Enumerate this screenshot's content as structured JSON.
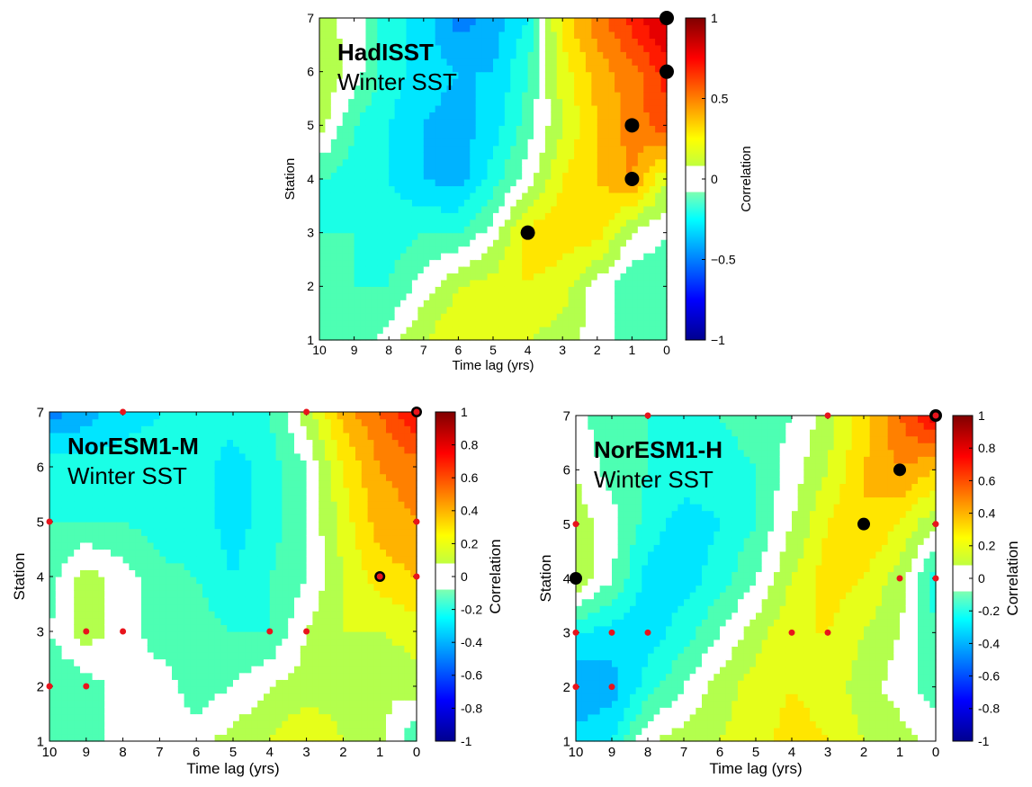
{
  "colors": {
    "scale": [
      "#00008f",
      "#0000ff",
      "#0080ff",
      "#00ffff",
      "#80ff80",
      "#ffff00",
      "#ff8000",
      "#ff0000",
      "#800000"
    ],
    "zero_band": "#ffffff",
    "significant_marker": "#000000",
    "station_marker": "#e8141c"
  },
  "chart_data": [
    {
      "type": "heatmap",
      "title": "HadISST",
      "subtitle": "Winter SST",
      "xlabel": "Time lag (yrs)",
      "ylabel": "Station",
      "xlim": [
        10,
        0
      ],
      "ylim": [
        1,
        7
      ],
      "xticks": [
        "10",
        "9",
        "8",
        "7",
        "6",
        "5",
        "4",
        "3",
        "2",
        "1",
        "0"
      ],
      "yticks": [
        "1",
        "2",
        "3",
        "4",
        "5",
        "6",
        "7"
      ],
      "colorbar": {
        "label": "Correlation",
        "range": [
          -1,
          1
        ],
        "ticks": [
          "−1",
          "−0.5",
          "0",
          "0.5",
          "1"
        ]
      },
      "x": [
        10,
        9,
        8,
        7,
        6,
        5,
        4,
        3,
        2,
        1,
        0
      ],
      "y": [
        1,
        2,
        3,
        4,
        5,
        6,
        7
      ],
      "z": [
        [
          -0.15,
          -0.12,
          0.0,
          0.15,
          0.25,
          0.2,
          0.15,
          0.1,
          0.0,
          -0.12,
          -0.15
        ],
        [
          -0.15,
          -0.15,
          -0.15,
          0.0,
          0.15,
          0.2,
          0.25,
          0.2,
          0.0,
          -0.12,
          -0.15
        ],
        [
          -0.15,
          -0.15,
          -0.2,
          -0.15,
          -0.15,
          0.0,
          0.3,
          0.3,
          0.3,
          0.05,
          -0.05
        ],
        [
          -0.15,
          -0.2,
          -0.25,
          -0.35,
          -0.4,
          -0.2,
          0.0,
          0.25,
          0.35,
          0.45,
          0.15
        ],
        [
          0.1,
          -0.15,
          -0.25,
          -0.35,
          -0.4,
          -0.3,
          -0.1,
          0.15,
          0.35,
          0.5,
          0.6
        ],
        [
          0.15,
          0.0,
          -0.2,
          -0.3,
          -0.35,
          -0.35,
          -0.15,
          0.2,
          0.4,
          0.5,
          0.7
        ],
        [
          0.1,
          0.0,
          -0.2,
          -0.3,
          -0.5,
          -0.4,
          -0.25,
          0.3,
          0.5,
          0.7,
          0.9
        ]
      ],
      "significant": [
        [
          0,
          7
        ],
        [
          0,
          6
        ],
        [
          1,
          5
        ],
        [
          1,
          4
        ],
        [
          4,
          3
        ]
      ],
      "marked": []
    },
    {
      "type": "heatmap",
      "title": "NorESM1-M",
      "subtitle": "Winter SST",
      "xlabel": "Time lag (yrs)",
      "ylabel": "Station",
      "xlim": [
        10,
        0
      ],
      "ylim": [
        1,
        7
      ],
      "xticks": [
        "10",
        "9",
        "8",
        "7",
        "6",
        "5",
        "4",
        "3",
        "2",
        "1",
        "0"
      ],
      "yticks": [
        "1",
        "2",
        "3",
        "4",
        "5",
        "6",
        "7"
      ],
      "colorbar": {
        "label": "Correlation",
        "range": [
          -1,
          1
        ],
        "ticks": [
          "-1",
          "-0.8",
          "-0.6",
          "-0.4",
          "-0.2",
          "0",
          "0.2",
          "0.4",
          "0.6",
          "0.8",
          "1"
        ]
      },
      "x": [
        10,
        9,
        8,
        7,
        6,
        5,
        4,
        3,
        2,
        1,
        0
      ],
      "y": [
        1,
        2,
        3,
        4,
        5,
        6,
        7
      ],
      "z": [
        [
          -0.1,
          -0.1,
          0.0,
          0.0,
          0.0,
          0.1,
          0.15,
          0.25,
          0.15,
          0.1,
          -0.15
        ],
        [
          -0.15,
          -0.1,
          0.0,
          0.0,
          -0.1,
          -0.05,
          0.05,
          0.1,
          0.1,
          0.05,
          0.1
        ],
        [
          -0.05,
          0.1,
          0.0,
          -0.1,
          -0.1,
          -0.15,
          -0.15,
          0.05,
          0.15,
          0.15,
          0.2
        ],
        [
          -0.1,
          0.1,
          0.0,
          -0.12,
          -0.15,
          -0.25,
          -0.15,
          -0.05,
          0.15,
          0.3,
          0.35
        ],
        [
          -0.15,
          -0.15,
          -0.15,
          -0.2,
          -0.2,
          -0.3,
          -0.2,
          -0.05,
          0.2,
          0.4,
          0.45
        ],
        [
          -0.15,
          -0.2,
          -0.2,
          -0.2,
          -0.2,
          -0.3,
          -0.2,
          -0.05,
          0.25,
          0.45,
          0.5
        ],
        [
          -0.5,
          -0.4,
          -0.3,
          -0.25,
          -0.2,
          -0.2,
          -0.15,
          0.1,
          0.4,
          0.55,
          0.75
        ]
      ],
      "significant": [
        [
          0,
          7
        ],
        [
          1,
          4
        ]
      ],
      "marked": [
        [
          10,
          2
        ],
        [
          9,
          2
        ],
        [
          10,
          5
        ],
        [
          9,
          3
        ],
        [
          8,
          3
        ],
        [
          4,
          3
        ],
        [
          3,
          3
        ],
        [
          8,
          7
        ],
        [
          3,
          7
        ],
        [
          0,
          7
        ],
        [
          0,
          5
        ],
        [
          0,
          4
        ],
        [
          1,
          4
        ]
      ]
    },
    {
      "type": "heatmap",
      "title": "NorESM1-H",
      "subtitle": "Winter SST",
      "xlabel": "Time lag (yrs)",
      "ylabel": "Station",
      "xlim": [
        10,
        0
      ],
      "ylim": [
        1,
        7
      ],
      "xticks": [
        "10",
        "9",
        "8",
        "7",
        "6",
        "5",
        "4",
        "3",
        "2",
        "1",
        "0"
      ],
      "yticks": [
        "1",
        "2",
        "3",
        "4",
        "5",
        "6",
        "7"
      ],
      "colorbar": {
        "label": "Correlation",
        "range": [
          -1,
          1
        ],
        "ticks": [
          "-1",
          "-0.8",
          "-0.6",
          "-0.4",
          "-0.2",
          "0",
          "0.2",
          "0.4",
          "0.6",
          "0.8",
          "1"
        ]
      },
      "x": [
        10,
        9,
        8,
        7,
        6,
        5,
        4,
        3,
        2,
        1,
        0
      ],
      "y": [
        1,
        2,
        3,
        4,
        5,
        6,
        7
      ],
      "z": [
        [
          -0.3,
          -0.25,
          0.05,
          0.1,
          0.15,
          0.2,
          0.3,
          0.25,
          0.15,
          0.1,
          0.0
        ],
        [
          -0.45,
          -0.4,
          -0.2,
          -0.05,
          0.1,
          0.2,
          0.25,
          0.2,
          0.1,
          0.0,
          -0.1
        ],
        [
          -0.25,
          -0.3,
          -0.3,
          -0.2,
          -0.05,
          0.1,
          0.25,
          0.25,
          0.15,
          0.05,
          -0.15
        ],
        [
          0.15,
          -0.05,
          -0.3,
          -0.3,
          -0.2,
          -0.05,
          0.15,
          0.3,
          0.25,
          0.1,
          -0.2
        ],
        [
          0.1,
          0.0,
          -0.2,
          -0.3,
          -0.25,
          -0.15,
          0.05,
          0.25,
          0.35,
          0.25,
          0.05
        ],
        [
          0.05,
          -0.1,
          -0.15,
          -0.2,
          -0.2,
          -0.15,
          0.0,
          0.15,
          0.35,
          0.45,
          0.35
        ],
        [
          0.0,
          -0.15,
          -0.15,
          -0.15,
          -0.15,
          -0.1,
          -0.05,
          0.1,
          0.3,
          0.55,
          0.8
        ]
      ],
      "significant": [
        [
          0,
          7
        ],
        [
          1,
          6
        ],
        [
          2,
          5
        ],
        [
          10,
          4
        ]
      ],
      "marked": [
        [
          10,
          2
        ],
        [
          9,
          2
        ],
        [
          10,
          5
        ],
        [
          9,
          3
        ],
        [
          8,
          3
        ],
        [
          4,
          3
        ],
        [
          3,
          3
        ],
        [
          8,
          7
        ],
        [
          3,
          7
        ],
        [
          0,
          7
        ],
        [
          0,
          5
        ],
        [
          0,
          4
        ],
        [
          1,
          4
        ],
        [
          10,
          3
        ]
      ]
    }
  ]
}
